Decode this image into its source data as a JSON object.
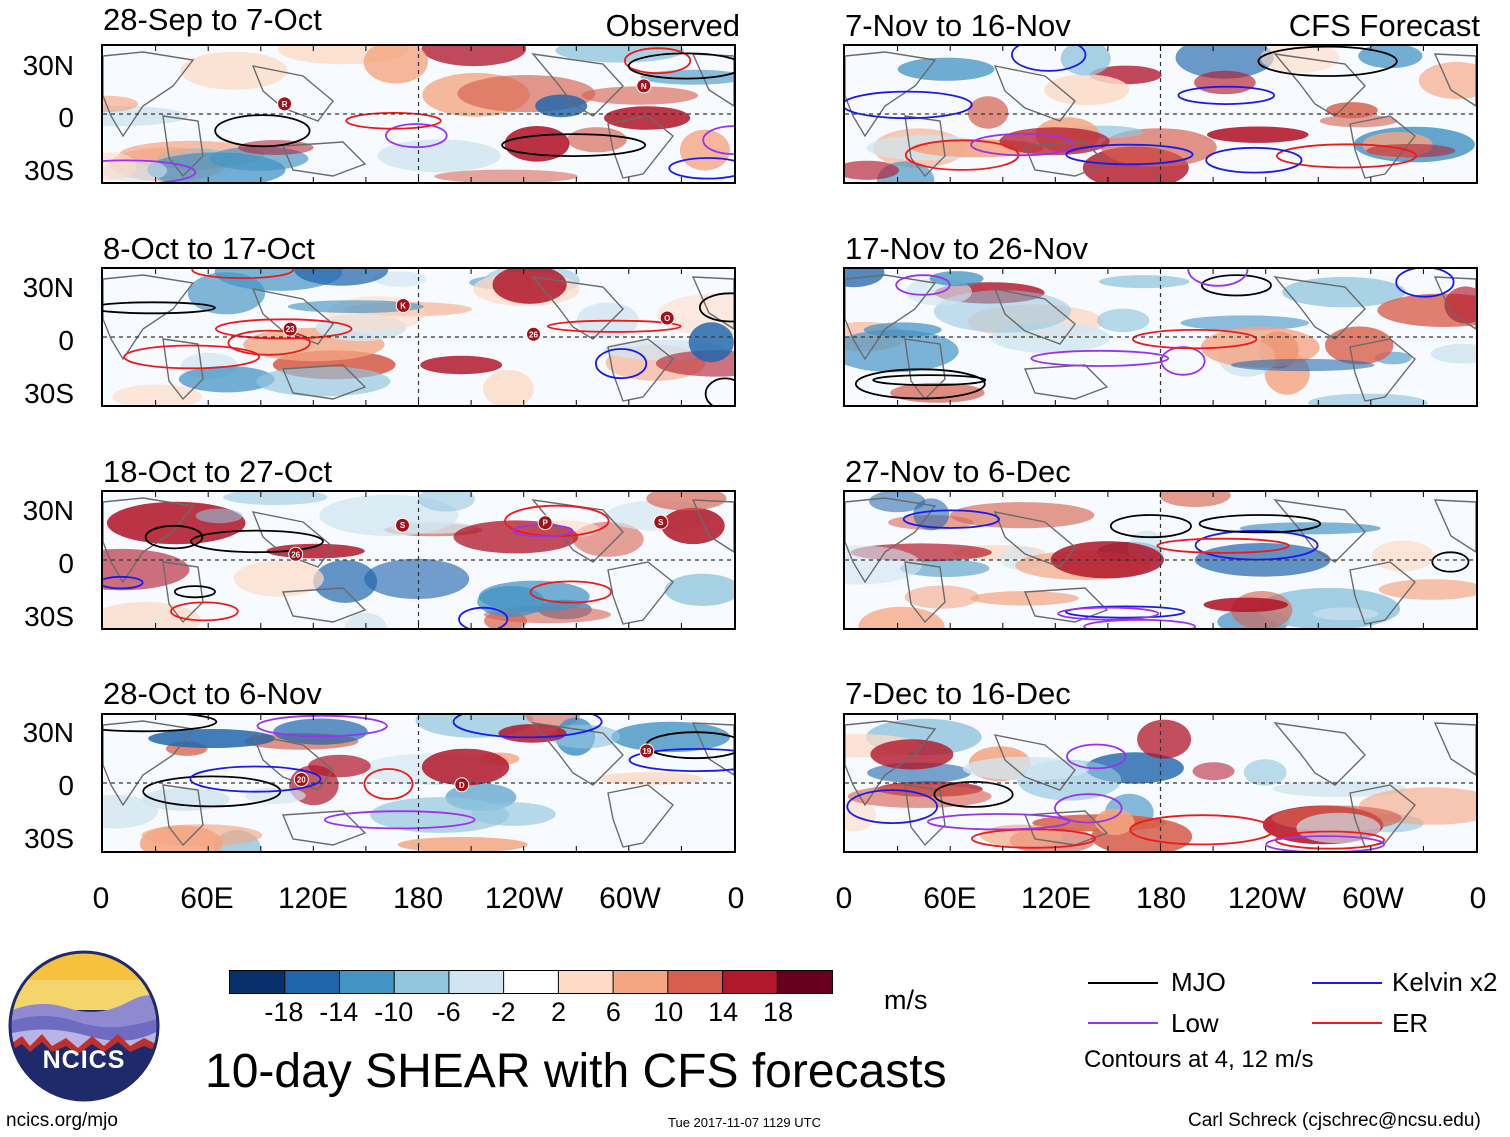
{
  "figure_title": "10-day SHEAR with CFS forecasts",
  "observed_label": "Observed",
  "forecast_label": "CFS Forecast",
  "lat_labels": [
    "30N",
    "0",
    "30S"
  ],
  "lon_labels": [
    "0",
    "60E",
    "120E",
    "180",
    "120W",
    "60W",
    "0"
  ],
  "panels": {
    "left": [
      "28-Sep to 7-Oct",
      "8-Oct to 17-Oct",
      "18-Oct to 27-Oct",
      "28-Oct to 6-Nov"
    ],
    "right": [
      "7-Nov to 16-Nov",
      "17-Nov to 26-Nov",
      "27-Nov to 6-Dec",
      "7-Dec to 16-Dec"
    ]
  },
  "storm_markers": {
    "p0": [
      "R",
      "N"
    ],
    "p1": [
      "23",
      "K",
      "26",
      "O"
    ],
    "p2": [
      "26",
      "S",
      "P",
      "S"
    ],
    "p3": [
      "20",
      "D",
      "19"
    ]
  },
  "colorbar": {
    "unit": "m/s",
    "ticks": [
      "-18",
      "-14",
      "-10",
      "-6",
      "-2",
      "2",
      "6",
      "10",
      "14",
      "18"
    ],
    "colors": [
      "#08306b",
      "#2166ac",
      "#4393c3",
      "#92c5de",
      "#d1e5f0",
      "#ffffff",
      "#fddbc7",
      "#f4a582",
      "#d6604d",
      "#b2182b",
      "#67001f"
    ]
  },
  "legend": {
    "mjo": "MJO",
    "low": "Low",
    "kelvin": "Kelvin x2",
    "er": "ER",
    "contours": "Contours at 4, 12 m/s",
    "colors": {
      "mjo": "#000000",
      "low": "#9933ee",
      "kelvin": "#1a1aee",
      "er": "#ee1a1a"
    }
  },
  "logo_text": "NCICS",
  "footer": {
    "url": "ncics.org/mjo",
    "timestamp": "Tue 2017-11-07 1129 UTC",
    "credit": "Carl Schreck (cjschrec@ncsu.edu)"
  }
}
